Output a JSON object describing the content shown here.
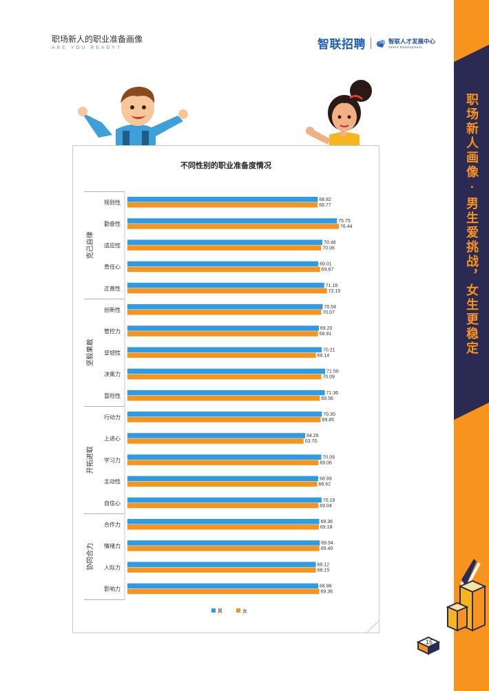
{
  "header": {
    "title": "职场新人的职业准备画像",
    "subtitle": "ARE YOU READY?",
    "logo_main": "智联招聘",
    "logo_secondary": "智联人才发展中心",
    "logo_secondary_en": "Talent Development"
  },
  "side_banner": {
    "text": "职场新人画像 · 男生爱挑战，女生更稳定"
  },
  "page_number": "15",
  "colors": {
    "male": "#2e9be6",
    "female": "#f7941d",
    "accent_orange": "#f7941d",
    "dark_navy": "#2b2a52"
  },
  "icons": [
    "boy-illustration",
    "girl-illustration",
    "trophy-illustration",
    "logo-mark-icon"
  ],
  "chart_data": {
    "type": "bar",
    "orientation": "horizontal",
    "title": "不同性别的职业准备度情况",
    "groups": [
      {
        "name": "克己自律",
        "categories": [
          "规则性",
          "勤奋性",
          "适应性",
          "责任心",
          "正直性"
        ]
      },
      {
        "name": "坚毅果敢",
        "categories": [
          "创新性",
          "管控力",
          "坚韧性",
          "决策力",
          "冒险性"
        ]
      },
      {
        "name": "开拓进取",
        "categories": [
          "行动力",
          "上进心",
          "学习力",
          "主动性",
          "自信心"
        ]
      },
      {
        "name": "协同合力",
        "categories": [
          "合作力",
          "情绪力",
          "人际力",
          "影响力"
        ]
      }
    ],
    "categories": [
      "规则性",
      "勤奋性",
      "适应性",
      "责任心",
      "正直性",
      "创新性",
      "管控力",
      "坚韧性",
      "决策力",
      "冒险性",
      "行动力",
      "上进心",
      "学习力",
      "主动性",
      "自信心",
      "合作力",
      "情绪力",
      "人际力",
      "影响力"
    ],
    "series": [
      {
        "name": "男",
        "values": [
          68.82,
          75.75,
          70.48,
          69.01,
          71.16,
          70.58,
          69.2,
          70.21,
          71.5,
          71.36,
          70.3,
          64.26,
          70.09,
          68.99,
          70.19,
          69.36,
          69.54,
          68.12,
          68.98
        ]
      },
      {
        "name": "女",
        "values": [
          68.77,
          76.44,
          70.06,
          69.67,
          72.15,
          70.07,
          68.91,
          68.14,
          70.09,
          69.56,
          69.85,
          63.7,
          69.06,
          68.62,
          69.04,
          69.18,
          69.4,
          68.15,
          69.36
        ]
      }
    ],
    "value_labels": [
      [
        "68.82",
        "75.75",
        "70.48",
        "69.01",
        "71.16",
        "70.58",
        "69.20",
        "70.21",
        "71.50",
        "71.36",
        "70.30",
        "64.26",
        "70.09",
        "68.99",
        "70.19",
        "69.36",
        "69.54",
        "68.12",
        "68.98"
      ],
      [
        "68.77",
        "76.44",
        "70.06",
        "69.67",
        "72.15",
        "70.07",
        "68.91",
        "68.14",
        "70.09",
        "69.56",
        "69.85",
        "63.70",
        "69.06",
        "68.62",
        "69.04",
        "69.18",
        "69.40",
        "68.15",
        "69.36"
      ]
    ],
    "xlim": [
      0,
      80
    ],
    "grid": false,
    "legend": "bottom-center"
  }
}
